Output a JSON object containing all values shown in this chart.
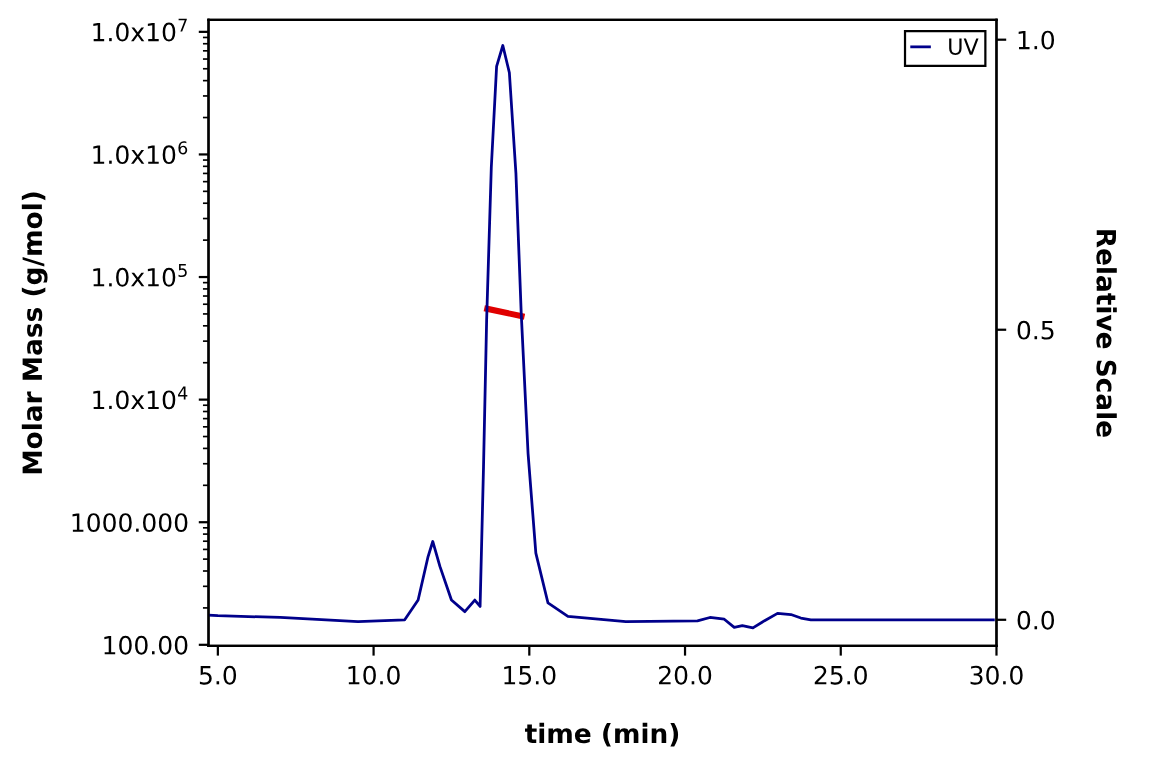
{
  "chart_data": {
    "type": "line",
    "xlabel": "time (min)",
    "ylabel": "Molar Mass (g/mol)",
    "y2label": "Relative Scale",
    "series": [
      {
        "name": "UV",
        "color": "#00008b",
        "axis": "y2",
        "x": [
          4.7,
          5.0,
          7.0,
          9.5,
          11.0,
          11.43,
          11.75,
          11.9,
          12.13,
          12.5,
          12.93,
          13.25,
          13.42,
          13.53,
          13.63,
          13.78,
          13.95,
          14.15,
          14.36,
          14.57,
          14.74,
          14.96,
          15.21,
          15.6,
          16.24,
          18.1,
          20.4,
          20.8,
          21.26,
          21.58,
          21.84,
          22.18,
          22.54,
          22.97,
          23.4,
          23.72,
          24.04,
          29.9
        ],
        "values": [
          0.008,
          0.007,
          0.004,
          -0.003,
          0.0,
          0.034,
          0.109,
          0.135,
          0.092,
          0.034,
          0.014,
          0.034,
          0.023,
          0.264,
          0.517,
          0.78,
          0.954,
          0.99,
          0.943,
          0.77,
          0.529,
          0.287,
          0.115,
          0.029,
          0.006,
          -0.003,
          -0.002,
          0.004,
          0.001,
          -0.013,
          -0.01,
          -0.014,
          -0.002,
          0.011,
          0.009,
          0.003,
          0.0,
          0.0
        ]
      },
      {
        "color": "#e00000",
        "x": [
          13.65,
          14.75
        ],
        "values": [
          55000,
          48000
        ]
      }
    ],
    "xlim": [
      4.7,
      30.0
    ],
    "xticks": [
      {
        "value": 5,
        "label": "5.0"
      },
      {
        "value": 10,
        "label": "10.0"
      },
      {
        "value": 15,
        "label": "15.0"
      },
      {
        "value": 20,
        "label": "20.0"
      },
      {
        "value": 25,
        "label": "25.0"
      },
      {
        "value": 30,
        "label": "30.0"
      }
    ],
    "log": "y",
    "ylim": [
      98,
      12500000
    ],
    "yticks": [
      {
        "value": 100,
        "label": "100.00"
      },
      {
        "value": 1000,
        "label": "1000.000"
      },
      {
        "value": 10000,
        "label": "1.0x10$^{4}$"
      },
      {
        "value": 100000,
        "label": "1.0x10$^{5}$"
      },
      {
        "value": 1000000,
        "label": "1.0x10$^{6}$"
      },
      {
        "value": 10000000,
        "label": "1.0x10$^{7}$"
      }
    ],
    "y2lim": [
      -0.045,
      1.034
    ],
    "y2ticks": [
      {
        "value": 0,
        "label": "0.0"
      },
      {
        "value": 0.5,
        "label": "0.5"
      },
      {
        "value": 1,
        "label": "1.0"
      }
    ],
    "legend": "top right",
    "grid": false,
    "line_style": "solid",
    "marker": "none"
  }
}
